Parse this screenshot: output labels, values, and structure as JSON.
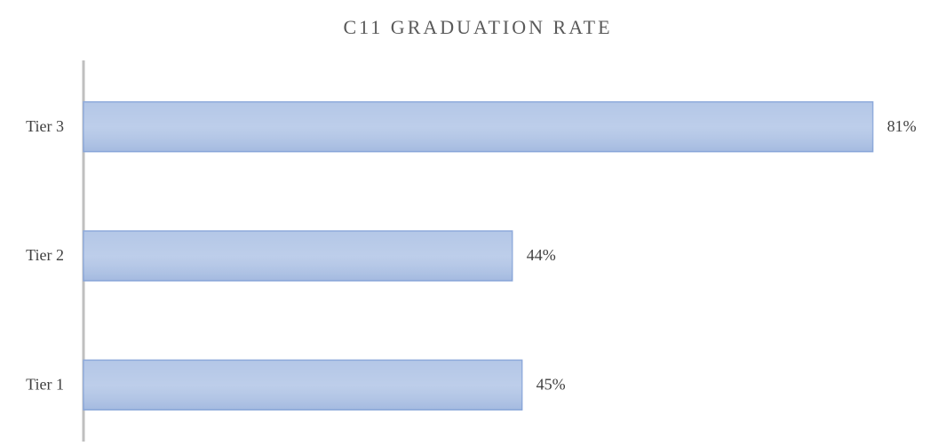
{
  "chart_data": {
    "type": "bar",
    "orientation": "horizontal",
    "title": "C11 GRADUATION RATE",
    "categories": [
      "Tier 1",
      "Tier 2",
      "Tier 3"
    ],
    "values": [
      45,
      44,
      81
    ],
    "value_labels": [
      "45%",
      "44%",
      "81%"
    ],
    "color": "#b4c7e7",
    "xlim": [
      0,
      85
    ]
  }
}
